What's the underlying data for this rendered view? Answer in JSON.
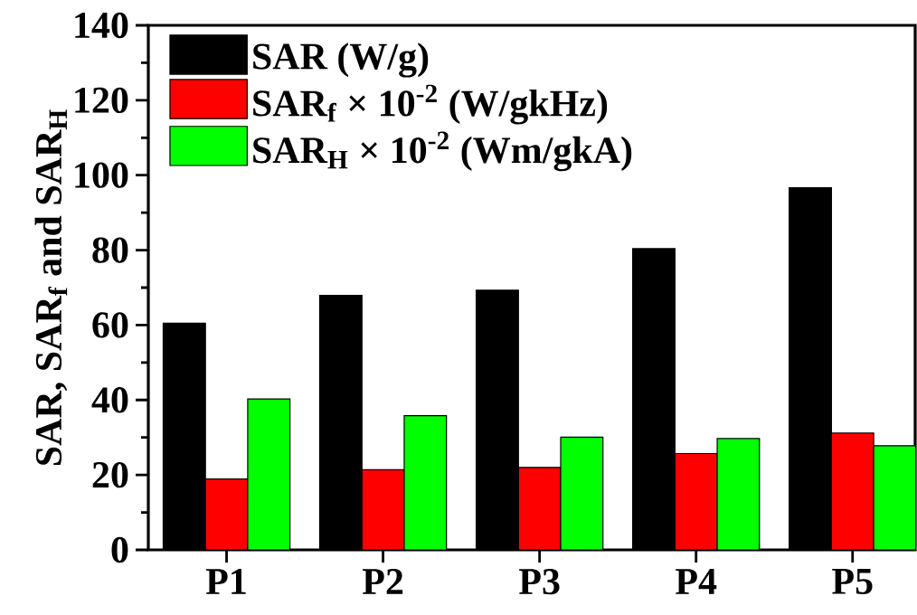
{
  "chart_data": {
    "type": "bar",
    "ylabel": "SAR, SAR$_{f}$ and SAR$_{H}$",
    "categories": [
      "P1",
      "P2",
      "P3",
      "P4",
      "P5"
    ],
    "series": [
      {
        "name": "SAR (W/g)",
        "color": "#000000",
        "values": [
          60.5,
          67.9,
          69.3,
          80.4,
          96.7
        ]
      },
      {
        "name": "SAR$_{f}$ × 10$^{-2}$ (W/gkHz)",
        "color": "#ff0000",
        "values": [
          18.9,
          21.4,
          22.0,
          25.7,
          31.2
        ]
      },
      {
        "name": "SAR$_{H}$ × 10$^{-2}$ (Wm/gkA)",
        "color": "#00ff00",
        "values": [
          40.3,
          35.8,
          30.1,
          29.7,
          27.8
        ]
      }
    ],
    "ylim": [
      0,
      140
    ],
    "yticks": [
      0,
      20,
      40,
      60,
      80,
      100,
      120,
      140
    ],
    "grid": false,
    "legend": "top left"
  }
}
